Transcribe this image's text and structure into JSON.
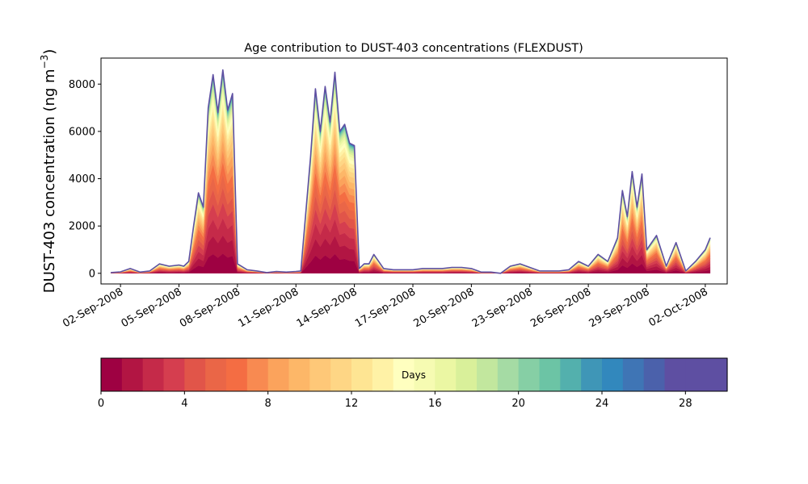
{
  "chart_data": {
    "type": "area",
    "title": "Age contribution to DUST-403 concentrations (FLEXDUST)",
    "ylabel": "DUST-403 concentration (ng m",
    "ylabel_sup": "−3",
    "ylabel_close": ")",
    "xlim": [
      "2008-09-01T00:00",
      "2008-10-03T03:00"
    ],
    "ylim": [
      -450,
      9100
    ],
    "y_ticks": [
      0,
      2000,
      4000,
      6000,
      8000
    ],
    "x_ticks": [
      "2008-09-02",
      "2008-09-05",
      "2008-09-08",
      "2008-09-11",
      "2008-09-14",
      "2008-09-17",
      "2008-09-20",
      "2008-09-23",
      "2008-09-26",
      "2008-09-29",
      "2008-10-02"
    ],
    "x_tick_labels": [
      "02-Sep-2008",
      "05-Sep-2008",
      "08-Sep-2008",
      "11-Sep-2008",
      "14-Sep-2008",
      "17-Sep-2008",
      "20-Sep-2008",
      "23-Sep-2008",
      "26-Sep-2008",
      "29-Sep-2008",
      "02-Oct-2008"
    ],
    "series_note": "stacked contributions by particle age, 30 age bins of 1 day each (0–30 days); top envelope = total concentration",
    "total": {
      "x": [
        "2008-09-01T12:00",
        "2008-09-02T00:00",
        "2008-09-02T12:00",
        "2008-09-03T00:00",
        "2008-09-03T12:00",
        "2008-09-04T00:00",
        "2008-09-04T12:00",
        "2008-09-05T00:00",
        "2008-09-05T06:00",
        "2008-09-05T12:00",
        "2008-09-05T18:00",
        "2008-09-06T00:00",
        "2008-09-06T06:00",
        "2008-09-06T12:00",
        "2008-09-06T18:00",
        "2008-09-07T00:00",
        "2008-09-07T06:00",
        "2008-09-07T12:00",
        "2008-09-07T18:00",
        "2008-09-08T00:00",
        "2008-09-08T12:00",
        "2008-09-09T00:00",
        "2008-09-09T12:00",
        "2008-09-10T00:00",
        "2008-09-10T12:00",
        "2008-09-11T00:00",
        "2008-09-11T06:00",
        "2008-09-11T12:00",
        "2008-09-11T18:00",
        "2008-09-12T00:00",
        "2008-09-12T06:00",
        "2008-09-12T12:00",
        "2008-09-12T18:00",
        "2008-09-13T00:00",
        "2008-09-13T06:00",
        "2008-09-13T12:00",
        "2008-09-13T18:00",
        "2008-09-14T00:00",
        "2008-09-14T06:00",
        "2008-09-14T12:00",
        "2008-09-14T18:00",
        "2008-09-15T00:00",
        "2008-09-15T12:00",
        "2008-09-16T00:00",
        "2008-09-16T12:00",
        "2008-09-17T00:00",
        "2008-09-17T12:00",
        "2008-09-18T00:00",
        "2008-09-18T12:00",
        "2008-09-19T00:00",
        "2008-09-19T12:00",
        "2008-09-20T00:00",
        "2008-09-20T12:00",
        "2008-09-21T00:00",
        "2008-09-21T12:00",
        "2008-09-22T00:00",
        "2008-09-22T12:00",
        "2008-09-23T00:00",
        "2008-09-23T12:00",
        "2008-09-24T00:00",
        "2008-09-24T12:00",
        "2008-09-25T00:00",
        "2008-09-25T12:00",
        "2008-09-26T00:00",
        "2008-09-26T12:00",
        "2008-09-27T00:00",
        "2008-09-27T06:00",
        "2008-09-27T12:00",
        "2008-09-27T18:00",
        "2008-09-28T00:00",
        "2008-09-28T06:00",
        "2008-09-28T12:00",
        "2008-09-28T18:00",
        "2008-09-29T00:00",
        "2008-09-29T12:00",
        "2008-09-30T00:00",
        "2008-09-30T12:00",
        "2008-10-01T00:00",
        "2008-10-01T12:00",
        "2008-10-02T00:00",
        "2008-10-02T06:00"
      ],
      "y": [
        30,
        60,
        200,
        50,
        100,
        400,
        300,
        350,
        300,
        500,
        2000,
        3400,
        2800,
        7000,
        8400,
        6800,
        8600,
        6900,
        7600,
        400,
        150,
        100,
        30,
        80,
        50,
        80,
        100,
        2500,
        4900,
        7800,
        6000,
        7900,
        6400,
        8500,
        6000,
        6300,
        5500,
        5400,
        200,
        400,
        400,
        800,
        200,
        150,
        150,
        150,
        200,
        200,
        200,
        250,
        250,
        200,
        50,
        50,
        0,
        300,
        400,
        250,
        100,
        100,
        100,
        150,
        500,
        300,
        800,
        500,
        1000,
        1500,
        3500,
        2400,
        4300,
        2800,
        4200,
        1000,
        1600,
        300,
        1300,
        100,
        500,
        1000,
        1500
      ]
    },
    "colorbar": {
      "label": "Days",
      "ticks": [
        0,
        4,
        8,
        12,
        16,
        20,
        24,
        28
      ],
      "range": [
        0,
        30
      ],
      "colors": [
        "#9e0142",
        "#b21543",
        "#c52a49",
        "#d53e4f",
        "#e15549",
        "#ea6647",
        "#f46d43",
        "#f88a51",
        "#fba35c",
        "#fdb768",
        "#fec878",
        "#fed685",
        "#fee593",
        "#fff2a6",
        "#ffffbf",
        "#f6fbb2",
        "#ebf7a3",
        "#d9f09a",
        "#c2e79e",
        "#a5dba4",
        "#86cfa5",
        "#6cc4a5",
        "#53b0ad",
        "#3f96b7",
        "#3288bd",
        "#3f75b5",
        "#4b61ab",
        "#5e4fa2",
        "#5e4fa2",
        "#5e4fa2"
      ]
    }
  }
}
